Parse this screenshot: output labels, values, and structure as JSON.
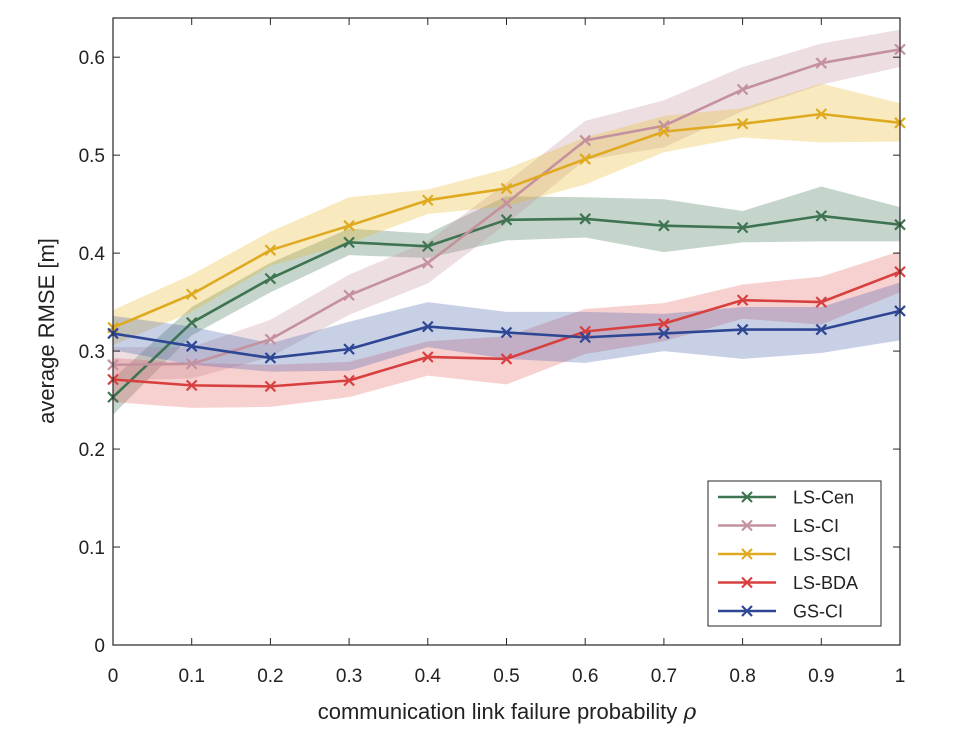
{
  "chart_data": {
    "type": "line",
    "title": "",
    "xlabel": "communication link failure probability ",
    "xlabel_symbol": "ρ",
    "ylabel": "average RMSE [m]",
    "xlim": [
      0,
      1
    ],
    "ylim": [
      0,
      0.64
    ],
    "grid": false,
    "legend_position": "bottom-right",
    "x": [
      0,
      0.1,
      0.2,
      0.3,
      0.4,
      0.5,
      0.6,
      0.7,
      0.8,
      0.9,
      1
    ],
    "x_tick_labels": [
      "0",
      "0.1",
      "0.2",
      "0.3",
      "0.4",
      "0.5",
      "0.6",
      "0.7",
      "0.8",
      "0.9",
      "1"
    ],
    "y_ticks": [
      0,
      0.1,
      0.2,
      0.3,
      0.4,
      0.5,
      0.6
    ],
    "y_tick_labels": [
      "0",
      "0.1",
      "0.2",
      "0.3",
      "0.4",
      "0.5",
      "0.6"
    ],
    "series": [
      {
        "name": "LS-Cen",
        "color": "#3f7452",
        "band_color": "#3f7452",
        "marker": "x",
        "values": [
          0.253,
          0.329,
          0.374,
          0.411,
          0.407,
          0.434,
          0.435,
          0.428,
          0.426,
          0.438,
          0.429
        ],
        "lower": [
          0.235,
          0.316,
          0.36,
          0.398,
          0.395,
          0.413,
          0.416,
          0.401,
          0.411,
          0.412,
          0.412
        ],
        "upper": [
          0.272,
          0.345,
          0.39,
          0.425,
          0.42,
          0.458,
          0.457,
          0.455,
          0.443,
          0.468,
          0.447
        ]
      },
      {
        "name": "LS-CI",
        "color": "#c4929e",
        "band_color": "#c4929e",
        "marker": "x",
        "values": [
          0.286,
          0.287,
          0.312,
          0.357,
          0.39,
          0.451,
          0.515,
          0.53,
          0.567,
          0.594,
          0.608
        ],
        "lower": [
          0.27,
          0.272,
          0.294,
          0.337,
          0.369,
          0.43,
          0.495,
          0.508,
          0.545,
          0.572,
          0.59
        ],
        "upper": [
          0.304,
          0.304,
          0.332,
          0.378,
          0.412,
          0.472,
          0.535,
          0.556,
          0.59,
          0.614,
          0.628
        ]
      },
      {
        "name": "LS-SCI",
        "color": "#e0aa20",
        "band_color": "#e8b928",
        "marker": "x",
        "values": [
          0.324,
          0.358,
          0.403,
          0.428,
          0.454,
          0.466,
          0.496,
          0.524,
          0.532,
          0.542,
          0.533
        ],
        "lower": [
          0.306,
          0.34,
          0.387,
          0.41,
          0.44,
          0.448,
          0.47,
          0.503,
          0.518,
          0.513,
          0.514
        ],
        "upper": [
          0.342,
          0.378,
          0.422,
          0.457,
          0.465,
          0.486,
          0.518,
          0.54,
          0.548,
          0.573,
          0.553
        ]
      },
      {
        "name": "LS-BDA",
        "color": "#d84040",
        "band_color": "#e46262",
        "marker": "x",
        "values": [
          0.271,
          0.265,
          0.264,
          0.27,
          0.294,
          0.292,
          0.32,
          0.328,
          0.352,
          0.35,
          0.381
        ],
        "lower": [
          0.248,
          0.242,
          0.243,
          0.253,
          0.275,
          0.266,
          0.297,
          0.31,
          0.333,
          0.327,
          0.36
        ],
        "upper": [
          0.293,
          0.288,
          0.286,
          0.289,
          0.31,
          0.315,
          0.343,
          0.349,
          0.368,
          0.376,
          0.402
        ]
      },
      {
        "name": "GS-CI",
        "color": "#2e4794",
        "band_color": "#4a64ac",
        "marker": "x",
        "values": [
          0.318,
          0.305,
          0.293,
          0.302,
          0.325,
          0.319,
          0.314,
          0.318,
          0.322,
          0.322,
          0.341
        ],
        "lower": [
          0.301,
          0.286,
          0.279,
          0.28,
          0.304,
          0.292,
          0.288,
          0.3,
          0.292,
          0.298,
          0.311
        ],
        "upper": [
          0.336,
          0.325,
          0.308,
          0.33,
          0.35,
          0.34,
          0.34,
          0.338,
          0.345,
          0.345,
          0.37
        ]
      }
    ]
  }
}
